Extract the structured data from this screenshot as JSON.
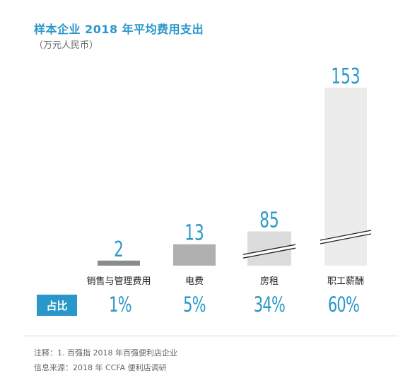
{
  "chart_data": {
    "type": "bar",
    "title": "样本企业 2018 年平均费用支出",
    "subtitle": "（万元人民币）",
    "categories": [
      "销售与管理费用",
      "电费",
      "房租",
      "职工薪酬"
    ],
    "values": [
      2,
      13,
      85,
      153
    ],
    "value_labels": [
      "2",
      "13",
      "85",
      "153"
    ],
    "share_label": "占比",
    "shares": [
      "1%",
      "5%",
      "34%",
      "60%"
    ],
    "axis_break_on": [
      "房租",
      "职工薪酬"
    ],
    "grid": false,
    "legend": "none"
  },
  "colors": {
    "accent": "#2a97c9",
    "bars": [
      "#8c8c8c",
      "#b0b0b0",
      "#dcdcdc",
      "#ececec"
    ]
  },
  "footer": {
    "note": "注释：1. 百强指 2018 年百强便利店企业",
    "source": "信息来源：2018 年 CCFA 便利店调研"
  }
}
